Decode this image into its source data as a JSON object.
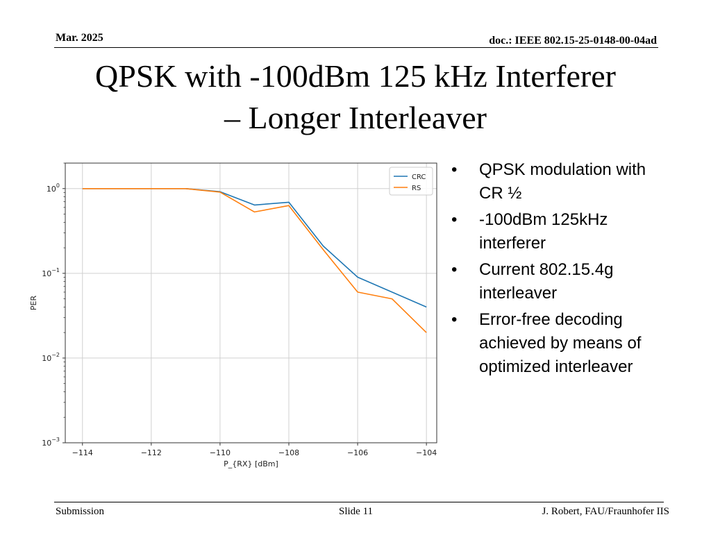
{
  "header": {
    "date": "Mar. 2025",
    "doc": "doc.: IEEE 802.15-25-0148-00-04ad"
  },
  "title": {
    "line1": "QPSK with -100dBm 125 kHz Interferer",
    "line2": "– Longer Interleaver"
  },
  "bullets": [
    "QPSK modulation with CR ½",
    "-100dBm 125kHz interferer",
    "Current 802.15.4g interleaver",
    "Error-free decoding achieved by means of optimized interleaver"
  ],
  "bullet_glyph": "•",
  "footer": {
    "left": "Submission",
    "center": "Slide 11",
    "right": "J. Robert, FAU/Fraunhofer IIS"
  },
  "chart_data": {
    "type": "line",
    "xlabel": "P_{RX} [dBm]",
    "ylabel": "PER",
    "x_scale": "linear",
    "y_scale": "log",
    "xlim": [
      -114.5,
      -103.7
    ],
    "ylim": [
      0.001,
      2
    ],
    "x_ticks": [
      -114,
      -112,
      -110,
      -108,
      -106,
      -104
    ],
    "x_tick_labels": [
      "−114",
      "−112",
      "−110",
      "−108",
      "−106",
      "−104"
    ],
    "y_ticks": [
      1,
      0.1,
      0.01,
      0.001
    ],
    "y_tick_labels": [
      {
        "base": "10",
        "exp": "0"
      },
      {
        "base": "10",
        "exp": "−1"
      },
      {
        "base": "10",
        "exp": "−2"
      },
      {
        "base": "10",
        "exp": "−3"
      }
    ],
    "grid": true,
    "legend_position": "top-right",
    "series": [
      {
        "name": "CRC",
        "color": "#1f77b4",
        "x": [
          -114,
          -113,
          -112,
          -111,
          -110,
          -109,
          -108,
          -107,
          -106,
          -105,
          -104
        ],
        "y": [
          1.0,
          1.0,
          1.0,
          1.0,
          0.92,
          0.64,
          0.69,
          0.21,
          0.09,
          0.06,
          0.04
        ]
      },
      {
        "name": "RS",
        "color": "#ff7f0e",
        "x": [
          -114,
          -113,
          -112,
          -111,
          -110,
          -109,
          -108,
          -107,
          -106,
          -105,
          -104
        ],
        "y": [
          1.0,
          1.0,
          1.0,
          1.0,
          0.91,
          0.53,
          0.63,
          0.19,
          0.06,
          0.05,
          0.02
        ]
      }
    ]
  }
}
